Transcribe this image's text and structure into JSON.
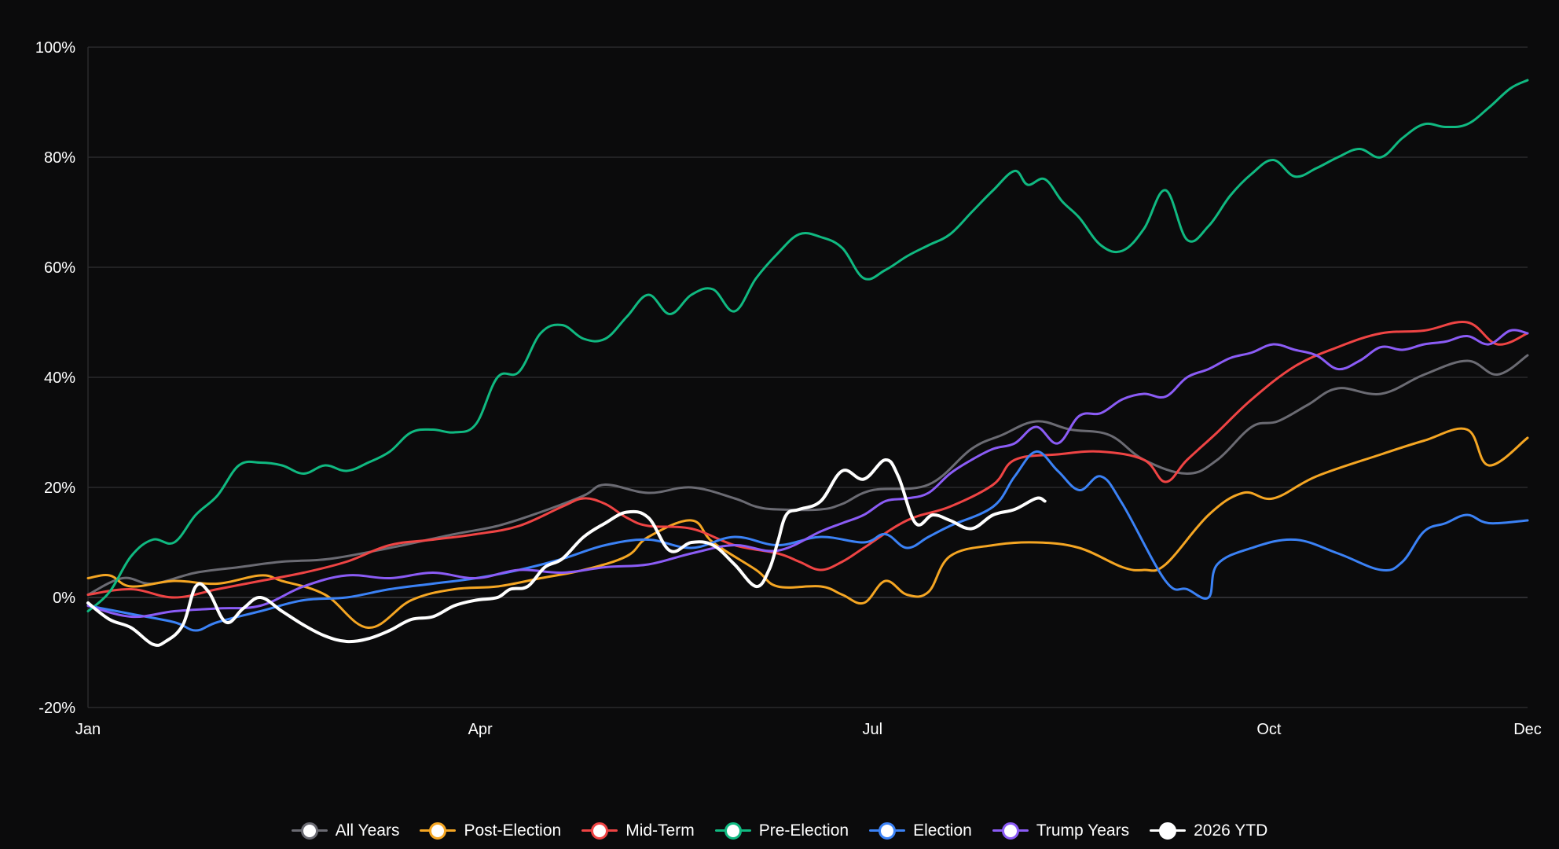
{
  "chart_data": {
    "type": "line",
    "title": "",
    "xlabel": "",
    "ylabel": "",
    "x_ticks": [
      "Jan",
      "Apr",
      "Jul",
      "Oct",
      "Dec"
    ],
    "x_tick_days": [
      0,
      91,
      182,
      274,
      334
    ],
    "y_ticks": [
      "100%",
      "80%",
      "60%",
      "40%",
      "20%",
      "0%",
      "-20%"
    ],
    "ylim": [
      -20,
      100
    ],
    "xlim_days": [
      0,
      334
    ],
    "grid": "horizontal",
    "legend_position": "bottom",
    "series": [
      {
        "name": "All Years",
        "color": "#6b6b73",
        "width": 3,
        "x": [
          0,
          8,
          15,
          25,
          35,
          45,
          56,
          70,
          85,
          95,
          105,
          115,
          120,
          130,
          140,
          150,
          155,
          160,
          170,
          175,
          182,
          195,
          205,
          212,
          220,
          228,
          237,
          245,
          255,
          262,
          270,
          276,
          283,
          290,
          300,
          310,
          320,
          327,
          334
        ],
        "y": [
          0.5,
          3.5,
          2.5,
          4.5,
          5.5,
          6.5,
          7.0,
          9.0,
          11.5,
          13.0,
          15.5,
          18.5,
          20.5,
          19.0,
          20.0,
          18.0,
          16.5,
          16.0,
          16.0,
          17.0,
          19.5,
          20.5,
          27.0,
          29.5,
          32.0,
          30.5,
          29.5,
          25.0,
          22.5,
          25.0,
          31.0,
          32.0,
          35.0,
          38.0,
          37.0,
          40.5,
          43.0,
          40.5,
          44.0
        ]
      },
      {
        "name": "Post-Election",
        "color": "#f5a623",
        "width": 3,
        "x": [
          0,
          5,
          10,
          20,
          30,
          40,
          45,
          55,
          65,
          75,
          85,
          95,
          105,
          115,
          125,
          130,
          140,
          145,
          155,
          160,
          170,
          175,
          180,
          185,
          190,
          195,
          200,
          210,
          220,
          230,
          240,
          245,
          250,
          260,
          268,
          275,
          285,
          300,
          310,
          320,
          325,
          334
        ],
        "y": [
          3.5,
          4.0,
          2.0,
          3.0,
          2.5,
          4.0,
          3.0,
          0.5,
          -5.5,
          -0.5,
          1.5,
          2.0,
          3.5,
          5.0,
          7.5,
          11.0,
          14.0,
          10.0,
          5.0,
          2.0,
          2.0,
          0.5,
          -1.0,
          3.0,
          0.5,
          1.0,
          7.5,
          9.5,
          10.0,
          9.0,
          5.5,
          5.0,
          6.0,
          15.0,
          19.0,
          18.0,
          22.0,
          26.0,
          28.5,
          30.5,
          24.0,
          29.0
        ]
      },
      {
        "name": "Mid-Term",
        "color": "#ef4444",
        "width": 3,
        "x": [
          0,
          10,
          20,
          30,
          40,
          50,
          60,
          70,
          80,
          90,
          100,
          110,
          115,
          120,
          125,
          130,
          140,
          150,
          160,
          165,
          170,
          175,
          180,
          190,
          200,
          210,
          215,
          225,
          235,
          245,
          250,
          255,
          262,
          270,
          280,
          290,
          300,
          310,
          320,
          327,
          334
        ],
        "y": [
          0.5,
          1.5,
          0.0,
          1.5,
          3.0,
          4.5,
          6.5,
          9.5,
          10.5,
          11.5,
          13.0,
          16.5,
          18.0,
          17.0,
          14.5,
          13.0,
          12.5,
          9.5,
          8.0,
          6.5,
          5.0,
          6.5,
          9.0,
          14.0,
          16.5,
          20.5,
          25.0,
          26.0,
          26.5,
          25.0,
          21.0,
          25.0,
          30.0,
          36.0,
          42.0,
          45.5,
          48.0,
          48.5,
          50.0,
          46.0,
          48.0
        ]
      },
      {
        "name": "Pre-Election",
        "color": "#10b981",
        "width": 3,
        "x": [
          0,
          5,
          10,
          15,
          20,
          25,
          30,
          35,
          40,
          45,
          50,
          55,
          60,
          65,
          70,
          75,
          80,
          85,
          90,
          95,
          100,
          105,
          110,
          115,
          120,
          125,
          130,
          135,
          140,
          145,
          150,
          155,
          160,
          165,
          170,
          175,
          180,
          185,
          190,
          195,
          200,
          205,
          210,
          215,
          218,
          222,
          226,
          230,
          235,
          240,
          245,
          250,
          255,
          260,
          265,
          270,
          275,
          280,
          285,
          290,
          295,
          300,
          305,
          310,
          315,
          320,
          325,
          330,
          334
        ],
        "y": [
          -2.5,
          1.0,
          7.5,
          10.5,
          10.0,
          15.0,
          18.5,
          24.0,
          24.5,
          24.0,
          22.5,
          24.0,
          23.0,
          24.5,
          26.5,
          30.0,
          30.5,
          30.0,
          31.5,
          40.0,
          41.0,
          48.0,
          49.5,
          47.0,
          47.0,
          51.0,
          55.0,
          51.5,
          55.0,
          56.0,
          52.0,
          58.0,
          62.5,
          66.0,
          65.5,
          63.5,
          58.0,
          59.5,
          62.0,
          64.0,
          66.0,
          70.0,
          74.0,
          77.5,
          75.0,
          76.0,
          72.0,
          69.0,
          64.0,
          63.0,
          67.0,
          74.0,
          65.0,
          67.5,
          73.0,
          77.0,
          79.5,
          76.5,
          78.0,
          80.0,
          81.5,
          80.0,
          83.5,
          86.0,
          85.5,
          86.0,
          89.0,
          92.5,
          94.0
        ]
      },
      {
        "name": "Election",
        "color": "#3b82f6",
        "width": 3,
        "x": [
          0,
          10,
          20,
          25,
          30,
          40,
          50,
          60,
          70,
          80,
          90,
          100,
          110,
          120,
          130,
          140,
          150,
          160,
          170,
          180,
          185,
          190,
          195,
          200,
          210,
          215,
          220,
          225,
          230,
          235,
          240,
          250,
          255,
          260,
          262,
          270,
          280,
          290,
          300,
          305,
          310,
          315,
          320,
          325,
          334
        ],
        "y": [
          -1.5,
          -3.0,
          -4.5,
          -6.0,
          -4.5,
          -2.5,
          -0.5,
          0.0,
          1.5,
          2.5,
          3.5,
          5.0,
          7.0,
          9.5,
          10.5,
          9.0,
          11.0,
          9.5,
          11.0,
          10.0,
          11.5,
          9.0,
          11.0,
          13.0,
          16.5,
          22.0,
          26.5,
          23.0,
          19.5,
          22.0,
          17.0,
          3.0,
          1.5,
          0.0,
          6.0,
          9.0,
          10.5,
          8.0,
          5.0,
          6.5,
          12.0,
          13.5,
          15.0,
          13.5,
          14.0
        ]
      },
      {
        "name": "Trump Years",
        "color": "#8b5cf6",
        "width": 3,
        "x": [
          0,
          10,
          20,
          30,
          40,
          50,
          60,
          70,
          80,
          90,
          100,
          110,
          120,
          130,
          140,
          150,
          160,
          170,
          175,
          180,
          185,
          190,
          195,
          200,
          205,
          210,
          215,
          220,
          225,
          230,
          235,
          240,
          245,
          250,
          255,
          260,
          265,
          270,
          275,
          280,
          285,
          290,
          295,
          300,
          305,
          310,
          315,
          320,
          325,
          330,
          334
        ],
        "y": [
          -1.5,
          -3.5,
          -2.5,
          -2.0,
          -1.5,
          2.0,
          4.0,
          3.5,
          4.5,
          3.5,
          5.0,
          4.5,
          5.5,
          6.0,
          8.0,
          9.5,
          8.5,
          12.0,
          13.5,
          15.0,
          17.5,
          18.0,
          19.0,
          22.5,
          25.0,
          27.0,
          28.0,
          31.0,
          28.0,
          33.0,
          33.5,
          36.0,
          37.0,
          36.5,
          40.0,
          41.5,
          43.5,
          44.5,
          46.0,
          45.0,
          44.0,
          41.5,
          43.0,
          45.5,
          45.0,
          46.0,
          46.5,
          47.5,
          46.0,
          48.5,
          48.0
        ]
      },
      {
        "name": "2026 YTD",
        "color": "#ffffff",
        "width": 4,
        "x": [
          0,
          5,
          10,
          15,
          18,
          22,
          25,
          28,
          32,
          36,
          40,
          45,
          50,
          55,
          60,
          65,
          70,
          75,
          80,
          85,
          90,
          95,
          98,
          102,
          106,
          110,
          115,
          120,
          125,
          130,
          135,
          140,
          145,
          150,
          155,
          158,
          160,
          162,
          165,
          170,
          175,
          180,
          185,
          188,
          192,
          196,
          200,
          205,
          210,
          215,
          220,
          222
        ],
        "y": [
          -1.0,
          -4.0,
          -5.5,
          -8.5,
          -8.0,
          -5.0,
          2.0,
          1.0,
          -4.5,
          -2.0,
          0.0,
          -2.5,
          -5.0,
          -7.0,
          -8.0,
          -7.5,
          -6.0,
          -4.0,
          -3.5,
          -1.5,
          -0.5,
          0.0,
          1.5,
          2.0,
          5.5,
          7.0,
          11.0,
          13.5,
          15.5,
          14.5,
          8.5,
          10.0,
          9.5,
          6.0,
          2.0,
          5.0,
          10.0,
          15.0,
          16.0,
          17.5,
          23.0,
          21.5,
          25.0,
          22.0,
          13.5,
          15.0,
          14.0,
          12.5,
          15.0,
          16.0,
          18.0,
          17.5
        ]
      }
    ]
  }
}
